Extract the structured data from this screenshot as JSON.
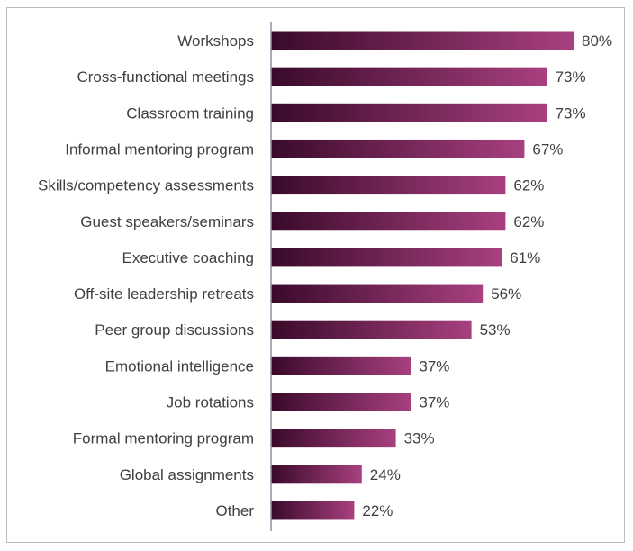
{
  "chart_data": {
    "type": "bar",
    "orientation": "horizontal",
    "categories": [
      "Workshops",
      "Cross-functional meetings",
      "Classroom training",
      "Informal mentoring program",
      "Skills/competency assessments",
      "Guest speakers/seminars",
      "Executive coaching",
      "Off-site leadership retreats",
      "Peer group discussions",
      "Emotional intelligence",
      "Job rotations",
      "Formal mentoring program",
      "Global assignments",
      "Other"
    ],
    "values": [
      80,
      73,
      73,
      67,
      62,
      62,
      61,
      56,
      53,
      37,
      37,
      33,
      24,
      22
    ],
    "value_labels": [
      "80%",
      "73%",
      "73%",
      "67%",
      "62%",
      "62%",
      "61%",
      "56%",
      "53%",
      "37%",
      "37%",
      "33%",
      "24%",
      "22%"
    ],
    "xlim": [
      0,
      100
    ],
    "grid": false,
    "legend": "none",
    "colors": {
      "bar_gradient_start": "#3a0a2a",
      "bar_gradient_end": "#a8407f",
      "axis_line": "#8a93a6",
      "frame_border": "#bdbdbd",
      "text": "#404040"
    }
  }
}
